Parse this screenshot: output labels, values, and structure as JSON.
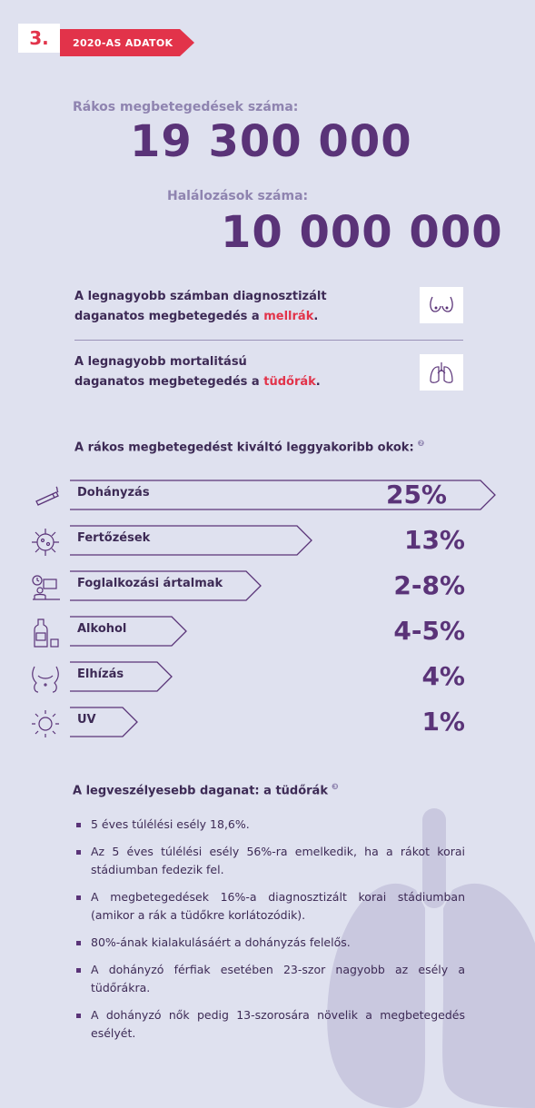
{
  "header": {
    "number": "3.",
    "ribbon_text": "2020-AS ADATOK"
  },
  "stats": {
    "cases_label": "Rákos megbetegedések száma:",
    "cases_value": "19 300 000",
    "deaths_label": "Halálozások száma:",
    "deaths_value": "10 000 000"
  },
  "info": [
    {
      "line1": "A legnagyobb számban diagnosztizált",
      "line2_prefix": "daganatos megbetegedés a ",
      "highlight": "mellrák",
      "suffix": ".",
      "icon": "breast-icon"
    },
    {
      "line1": "A legnagyobb mortalitású",
      "line2_prefix": "daganatos megbetegedés a ",
      "highlight": "tüdőrák",
      "suffix": ".",
      "icon": "lungs-icon"
    }
  ],
  "causes": {
    "title": "A rákos megbetegedést kiváltó leggyakoribb okok:",
    "ref": "❷",
    "items": [
      {
        "label": "Dohányzás",
        "value": "25%",
        "icon": "cigarette-icon"
      },
      {
        "label": "Fertőzések",
        "value": "13%",
        "icon": "virus-icon"
      },
      {
        "label": "Foglalkozási ártalmak",
        "value": "2-8%",
        "icon": "workplace-icon"
      },
      {
        "label": "Alkohol",
        "value": "4-5%",
        "icon": "bottle-icon"
      },
      {
        "label": "Elhízás",
        "value": "4%",
        "icon": "belly-icon"
      },
      {
        "label": "UV",
        "value": "1%",
        "icon": "sun-icon"
      }
    ]
  },
  "lung_section": {
    "title": "A legveszélyesebb daganat: a tüdőrák",
    "ref": "❸",
    "bullets": [
      "5 éves túlélési esély 18,6%.",
      "Az 5 éves túlélési esély 56%-ra emelkedik, ha a rákot korai stádiumban fedezik fel.",
      "A megbetegedések 16%-a diagnosztizált korai stádiumban (amikor a rák a tüdőkre korlátozódik).",
      "80%-ának kialakulásáért a dohányzás felelős.",
      "A dohányzó férfiak esetében 23-szor nagyobb az esély a tüdőrákra.",
      "A dohányzó nők pedig 13-szorosára növelik a megbetegedés esélyét."
    ]
  },
  "colors": {
    "background": "#dfe1ef",
    "accent": "#e2334a",
    "primary": "#5a3378",
    "muted": "#8f84b0"
  }
}
